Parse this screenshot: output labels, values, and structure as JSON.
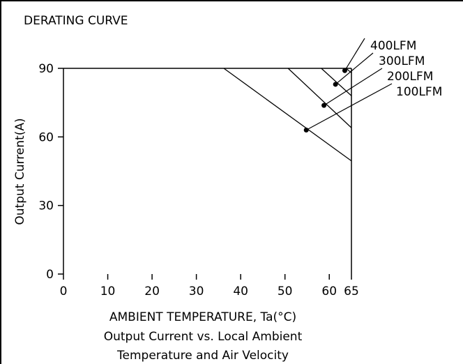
{
  "chart_data": {
    "type": "line",
    "title": "DERATING CURVE",
    "xlabel": "AMBIENT TEMPERATURE, Ta(°C)",
    "ylabel": "Output Current(A)",
    "caption_line1": "Output Current vs. Local Ambient",
    "caption_line2": "Temperature and Air Velocity",
    "xlim": [
      0,
      65
    ],
    "ylim": [
      0,
      90
    ],
    "x_ticks": [
      0,
      10,
      20,
      30,
      40,
      50,
      60,
      65
    ],
    "x_tick_labels": [
      "0",
      "10",
      "20",
      "30",
      "40",
      "50",
      "60",
      "65"
    ],
    "y_ticks": [
      0,
      30,
      60,
      90
    ],
    "y_tick_labels": [
      "0",
      "30",
      "60",
      "90"
    ],
    "grid": false,
    "series": [
      {
        "name": "100LFM",
        "x": [
          36.2,
          65
        ],
        "y": [
          90,
          49.5
        ],
        "marker": {
          "x": 54.8,
          "y": 63
        }
      },
      {
        "name": "200LFM",
        "x": [
          50.7,
          65
        ],
        "y": [
          90,
          64
        ],
        "marker": {
          "x": 58.8,
          "y": 73.8
        }
      },
      {
        "name": "300LFM",
        "x": [
          58.2,
          65
        ],
        "y": [
          90,
          78
        ],
        "marker": {
          "x": 61.4,
          "y": 83
        }
      },
      {
        "name": "400LFM",
        "x": [
          63.8,
          65
        ],
        "y": [
          90,
          88
        ],
        "marker": {
          "x": 63.5,
          "y": 89
        }
      }
    ]
  }
}
